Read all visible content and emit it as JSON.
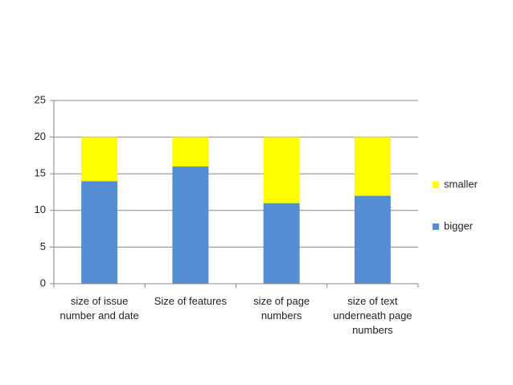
{
  "chart_data": {
    "type": "stacked-bar",
    "categories": [
      "size of issue number and date",
      "Size of features",
      "size of page numbers",
      "size of text underneath page numbers"
    ],
    "series": [
      {
        "name": "bigger",
        "color": "#558ed5",
        "values": [
          14,
          16,
          11,
          12
        ]
      },
      {
        "name": "smaller",
        "color": "#ffff00",
        "values": [
          6,
          4,
          9,
          8
        ]
      }
    ],
    "ylim": [
      0,
      25
    ],
    "yticks": [
      0,
      5,
      10,
      15,
      20,
      25
    ],
    "grid": true,
    "legend": "right"
  }
}
